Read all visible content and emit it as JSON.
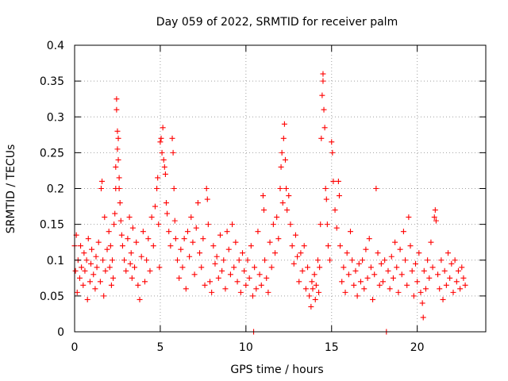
{
  "chart_data": {
    "type": "scatter",
    "title": "Day 059 of 2022, SRMTID for receiver palm",
    "xlabel": "GPS time / hours",
    "ylabel": "SRMTID / TECUs",
    "xlim": [
      0,
      24
    ],
    "ylim": [
      0,
      0.4
    ],
    "xticks": [
      0,
      5,
      10,
      15,
      20
    ],
    "xtick_labels": [
      "0",
      "5",
      "10",
      "15",
      "20"
    ],
    "yticks": [
      0,
      0.05,
      0.1,
      0.15,
      0.2,
      0.25,
      0.3,
      0.35,
      0.4
    ],
    "ytick_labels": [
      "0",
      "0.05",
      "0.1",
      "0.15",
      "0.2",
      "0.25",
      "0.3",
      "0.35",
      "0.4"
    ],
    "grid": true,
    "marker": "+",
    "color": "#ff0000",
    "series": [
      {
        "name": "SRMTID",
        "points": [
          [
            0.0,
            0.12
          ],
          [
            0.05,
            0.085
          ],
          [
            0.1,
            0.135
          ],
          [
            0.15,
            0.055
          ],
          [
            0.2,
            0.1
          ],
          [
            0.3,
            0.075
          ],
          [
            0.35,
            0.12
          ],
          [
            0.4,
            0.09
          ],
          [
            0.5,
            0.065
          ],
          [
            0.55,
            0.11
          ],
          [
            0.6,
            0.085
          ],
          [
            0.7,
            0.1
          ],
          [
            0.75,
            0.045
          ],
          [
            0.8,
            0.13
          ],
          [
            0.9,
            0.07
          ],
          [
            0.95,
            0.095
          ],
          [
            1.0,
            0.115
          ],
          [
            1.1,
            0.08
          ],
          [
            1.2,
            0.06
          ],
          [
            1.25,
            0.105
          ],
          [
            1.3,
            0.09
          ],
          [
            1.4,
            0.125
          ],
          [
            1.5,
            0.07
          ],
          [
            1.55,
            0.2
          ],
          [
            1.6,
            0.21
          ],
          [
            1.65,
            0.1
          ],
          [
            1.7,
            0.05
          ],
          [
            1.75,
            0.16
          ],
          [
            1.8,
            0.085
          ],
          [
            1.9,
            0.115
          ],
          [
            2.0,
            0.14
          ],
          [
            2.05,
            0.09
          ],
          [
            2.1,
            0.12
          ],
          [
            2.15,
            0.065
          ],
          [
            2.2,
            0.1
          ],
          [
            2.25,
            0.075
          ],
          [
            2.3,
            0.15
          ],
          [
            2.35,
            0.165
          ],
          [
            2.4,
            0.23
          ],
          [
            2.4,
            0.2
          ],
          [
            2.45,
            0.31
          ],
          [
            2.45,
            0.325
          ],
          [
            2.5,
            0.28
          ],
          [
            2.5,
            0.255
          ],
          [
            2.55,
            0.27
          ],
          [
            2.55,
            0.24
          ],
          [
            2.6,
            0.215
          ],
          [
            2.6,
            0.2
          ],
          [
            2.65,
            0.18
          ],
          [
            2.7,
            0.155
          ],
          [
            2.75,
            0.135
          ],
          [
            2.8,
            0.12
          ],
          [
            2.9,
            0.1
          ],
          [
            3.0,
            0.085
          ],
          [
            3.1,
            0.13
          ],
          [
            3.2,
            0.16
          ],
          [
            3.25,
            0.095
          ],
          [
            3.3,
            0.11
          ],
          [
            3.35,
            0.075
          ],
          [
            3.4,
            0.145
          ],
          [
            3.5,
            0.09
          ],
          [
            3.6,
            0.125
          ],
          [
            3.7,
            0.065
          ],
          [
            3.8,
            0.045
          ],
          [
            3.9,
            0.105
          ],
          [
            4.0,
            0.14
          ],
          [
            4.1,
            0.07
          ],
          [
            4.2,
            0.1
          ],
          [
            4.3,
            0.13
          ],
          [
            4.4,
            0.085
          ],
          [
            4.5,
            0.16
          ],
          [
            4.6,
            0.12
          ],
          [
            4.7,
            0.175
          ],
          [
            4.8,
            0.2
          ],
          [
            4.85,
            0.215
          ],
          [
            4.9,
            0.15
          ],
          [
            4.95,
            0.09
          ],
          [
            5.0,
            0.265
          ],
          [
            5.05,
            0.27
          ],
          [
            5.1,
            0.25
          ],
          [
            5.15,
            0.285
          ],
          [
            5.2,
            0.24
          ],
          [
            5.25,
            0.23
          ],
          [
            5.3,
            0.22
          ],
          [
            5.35,
            0.18
          ],
          [
            5.4,
            0.165
          ],
          [
            5.5,
            0.14
          ],
          [
            5.6,
            0.12
          ],
          [
            5.7,
            0.27
          ],
          [
            5.75,
            0.25
          ],
          [
            5.8,
            0.2
          ],
          [
            5.85,
            0.155
          ],
          [
            5.9,
            0.13
          ],
          [
            6.0,
            0.1
          ],
          [
            6.1,
            0.075
          ],
          [
            6.2,
            0.115
          ],
          [
            6.3,
            0.09
          ],
          [
            6.4,
            0.13
          ],
          [
            6.5,
            0.06
          ],
          [
            6.6,
            0.14
          ],
          [
            6.7,
            0.105
          ],
          [
            6.8,
            0.16
          ],
          [
            6.9,
            0.125
          ],
          [
            7.0,
            0.08
          ],
          [
            7.1,
            0.145
          ],
          [
            7.2,
            0.18
          ],
          [
            7.3,
            0.11
          ],
          [
            7.4,
            0.09
          ],
          [
            7.5,
            0.13
          ],
          [
            7.6,
            0.065
          ],
          [
            7.7,
            0.2
          ],
          [
            7.75,
            0.185
          ],
          [
            7.8,
            0.15
          ],
          [
            7.9,
            0.07
          ],
          [
            8.0,
            0.055
          ],
          [
            8.1,
            0.12
          ],
          [
            8.2,
            0.095
          ],
          [
            8.3,
            0.105
          ],
          [
            8.4,
            0.075
          ],
          [
            8.5,
            0.135
          ],
          [
            8.6,
            0.085
          ],
          [
            8.7,
            0.1
          ],
          [
            8.8,
            0.06
          ],
          [
            8.9,
            0.14
          ],
          [
            9.0,
            0.115
          ],
          [
            9.1,
            0.08
          ],
          [
            9.2,
            0.15
          ],
          [
            9.3,
            0.09
          ],
          [
            9.4,
            0.125
          ],
          [
            9.5,
            0.07
          ],
          [
            9.6,
            0.1
          ],
          [
            9.7,
            0.055
          ],
          [
            9.8,
            0.11
          ],
          [
            9.9,
            0.085
          ],
          [
            10.0,
            0.065
          ],
          [
            10.1,
            0.1
          ],
          [
            10.2,
            0.075
          ],
          [
            10.3,
            0.12
          ],
          [
            10.4,
            0.05
          ],
          [
            10.45,
            0.0
          ],
          [
            10.5,
            0.09
          ],
          [
            10.6,
            0.06
          ],
          [
            10.7,
            0.14
          ],
          [
            10.8,
            0.08
          ],
          [
            10.9,
            0.065
          ],
          [
            11.0,
            0.19
          ],
          [
            11.05,
            0.17
          ],
          [
            11.1,
            0.1
          ],
          [
            11.2,
            0.075
          ],
          [
            11.3,
            0.055
          ],
          [
            11.4,
            0.125
          ],
          [
            11.5,
            0.09
          ],
          [
            11.6,
            0.15
          ],
          [
            11.7,
            0.11
          ],
          [
            11.8,
            0.16
          ],
          [
            11.9,
            0.13
          ],
          [
            12.0,
            0.2
          ],
          [
            12.05,
            0.23
          ],
          [
            12.1,
            0.25
          ],
          [
            12.15,
            0.18
          ],
          [
            12.2,
            0.27
          ],
          [
            12.25,
            0.29
          ],
          [
            12.3,
            0.24
          ],
          [
            12.35,
            0.2
          ],
          [
            12.4,
            0.17
          ],
          [
            12.5,
            0.19
          ],
          [
            12.6,
            0.15
          ],
          [
            12.7,
            0.12
          ],
          [
            12.8,
            0.095
          ],
          [
            12.9,
            0.135
          ],
          [
            13.0,
            0.105
          ],
          [
            13.1,
            0.07
          ],
          [
            13.2,
            0.11
          ],
          [
            13.3,
            0.085
          ],
          [
            13.4,
            0.12
          ],
          [
            13.5,
            0.06
          ],
          [
            13.6,
            0.09
          ],
          [
            13.7,
            0.05
          ],
          [
            13.8,
            0.035
          ],
          [
            13.85,
            0.07
          ],
          [
            13.9,
            0.06
          ],
          [
            14.0,
            0.08
          ],
          [
            14.05,
            0.045
          ],
          [
            14.1,
            0.065
          ],
          [
            14.2,
            0.1
          ],
          [
            14.25,
            0.055
          ],
          [
            14.3,
            0.09
          ],
          [
            14.35,
            0.15
          ],
          [
            14.4,
            0.27
          ],
          [
            14.45,
            0.33
          ],
          [
            14.5,
            0.36
          ],
          [
            14.5,
            0.35
          ],
          [
            14.55,
            0.31
          ],
          [
            14.6,
            0.285
          ],
          [
            14.65,
            0.2
          ],
          [
            14.7,
            0.185
          ],
          [
            14.75,
            0.15
          ],
          [
            14.8,
            0.12
          ],
          [
            14.9,
            0.1
          ],
          [
            15.0,
            0.265
          ],
          [
            15.05,
            0.25
          ],
          [
            15.1,
            0.21
          ],
          [
            15.2,
            0.17
          ],
          [
            15.3,
            0.145
          ],
          [
            15.4,
            0.21
          ],
          [
            15.45,
            0.19
          ],
          [
            15.5,
            0.12
          ],
          [
            15.6,
            0.07
          ],
          [
            15.7,
            0.09
          ],
          [
            15.8,
            0.055
          ],
          [
            15.9,
            0.11
          ],
          [
            16.0,
            0.08
          ],
          [
            16.1,
            0.14
          ],
          [
            16.2,
            0.1
          ],
          [
            16.3,
            0.065
          ],
          [
            16.4,
            0.085
          ],
          [
            16.5,
            0.05
          ],
          [
            16.6,
            0.095
          ],
          [
            16.7,
            0.07
          ],
          [
            16.8,
            0.1
          ],
          [
            16.9,
            0.06
          ],
          [
            17.0,
            0.115
          ],
          [
            17.1,
            0.075
          ],
          [
            17.2,
            0.13
          ],
          [
            17.3,
            0.09
          ],
          [
            17.4,
            0.045
          ],
          [
            17.5,
            0.08
          ],
          [
            17.6,
            0.2
          ],
          [
            17.7,
            0.11
          ],
          [
            17.8,
            0.065
          ],
          [
            17.9,
            0.095
          ],
          [
            18.0,
            0.07
          ],
          [
            18.1,
            0.1
          ],
          [
            18.2,
            0.0
          ],
          [
            18.3,
            0.085
          ],
          [
            18.4,
            0.06
          ],
          [
            18.5,
            0.105
          ],
          [
            18.6,
            0.075
          ],
          [
            18.7,
            0.125
          ],
          [
            18.8,
            0.09
          ],
          [
            18.9,
            0.055
          ],
          [
            19.0,
            0.115
          ],
          [
            19.1,
            0.08
          ],
          [
            19.2,
            0.14
          ],
          [
            19.3,
            0.1
          ],
          [
            19.4,
            0.065
          ],
          [
            19.5,
            0.16
          ],
          [
            19.6,
            0.12
          ],
          [
            19.7,
            0.085
          ],
          [
            19.8,
            0.05
          ],
          [
            19.9,
            0.095
          ],
          [
            20.0,
            0.07
          ],
          [
            20.1,
            0.11
          ],
          [
            20.2,
            0.055
          ],
          [
            20.3,
            0.04
          ],
          [
            20.35,
            0.02
          ],
          [
            20.4,
            0.085
          ],
          [
            20.5,
            0.06
          ],
          [
            20.6,
            0.1
          ],
          [
            20.7,
            0.075
          ],
          [
            20.8,
            0.125
          ],
          [
            20.9,
            0.09
          ],
          [
            21.0,
            0.16
          ],
          [
            21.05,
            0.17
          ],
          [
            21.1,
            0.155
          ],
          [
            21.2,
            0.08
          ],
          [
            21.3,
            0.06
          ],
          [
            21.4,
            0.1
          ],
          [
            21.5,
            0.045
          ],
          [
            21.6,
            0.085
          ],
          [
            21.7,
            0.065
          ],
          [
            21.8,
            0.11
          ],
          [
            21.9,
            0.075
          ],
          [
            22.0,
            0.095
          ],
          [
            22.1,
            0.055
          ],
          [
            22.2,
            0.1
          ],
          [
            22.3,
            0.07
          ],
          [
            22.4,
            0.085
          ],
          [
            22.5,
            0.06
          ],
          [
            22.6,
            0.09
          ],
          [
            22.7,
            0.075
          ],
          [
            22.8,
            0.065
          ]
        ]
      }
    ]
  }
}
